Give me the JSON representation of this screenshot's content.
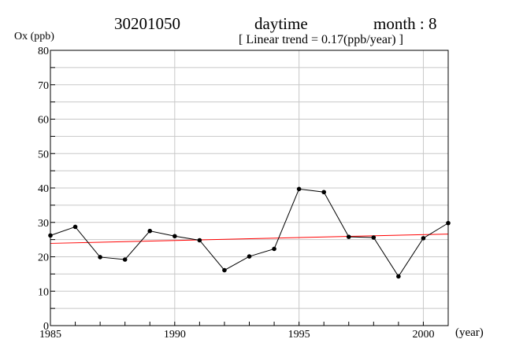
{
  "header": {
    "station": "30201050",
    "period": "daytime",
    "month": "month : 8",
    "trend": "[ Linear trend = 0.17(ppb/year) ]"
  },
  "chart_data": {
    "type": "line",
    "ylabel": "Ox (ppb)",
    "xlabel": "(year)",
    "xlim": [
      1985,
      2001
    ],
    "ylim": [
      0,
      80
    ],
    "x_ticks": [
      1985,
      1990,
      1995,
      2000
    ],
    "y_ticks": [
      0,
      10,
      20,
      30,
      40,
      50,
      60,
      70,
      80
    ],
    "grid": true,
    "series": [
      {
        "x": [
          1985,
          1986,
          1987,
          1988,
          1989,
          1990,
          1991,
          1992,
          1993,
          1994,
          1995,
          1996,
          1997,
          1998,
          1999,
          2000,
          2001
        ],
        "values": [
          26.2,
          28.7,
          19.9,
          19.2,
          27.5,
          26.0,
          24.8,
          16.1,
          20.1,
          22.3,
          39.7,
          38.8,
          25.8,
          25.6,
          14.3,
          25.4,
          29.8
        ],
        "color": "#000000"
      }
    ],
    "trend_line": {
      "x": [
        1985,
        2001
      ],
      "values": [
        23.9,
        26.6
      ],
      "color": "#ff0000"
    }
  }
}
